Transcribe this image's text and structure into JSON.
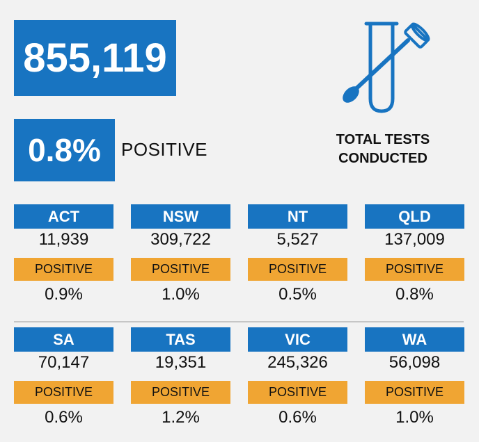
{
  "summary": {
    "total_tests": "855,119",
    "positive_pct": "0.8%",
    "positive_label": "POSITIVE",
    "caption_line1": "TOTAL TESTS",
    "caption_line2": "CONDUCTED",
    "icon": "test-tube-swab-icon"
  },
  "colors": {
    "blue": "#1874c1",
    "orange": "#f0a533"
  },
  "states": [
    {
      "name": "ACT",
      "count": "11,939",
      "positive_label": "POSITIVE",
      "positive_pct": "0.9%"
    },
    {
      "name": "NSW",
      "count": "309,722",
      "positive_label": "POSITIVE",
      "positive_pct": "1.0%"
    },
    {
      "name": "NT",
      "count": "5,527",
      "positive_label": "POSITIVE",
      "positive_pct": "0.5%"
    },
    {
      "name": "QLD",
      "count": "137,009",
      "positive_label": "POSITIVE",
      "positive_pct": "0.8%"
    },
    {
      "name": "SA",
      "count": "70,147",
      "positive_label": "POSITIVE",
      "positive_pct": "0.6%"
    },
    {
      "name": "TAS",
      "count": "19,351",
      "positive_label": "POSITIVE",
      "positive_pct": "1.2%"
    },
    {
      "name": "VIC",
      "count": "245,326",
      "positive_label": "POSITIVE",
      "positive_pct": "0.6%"
    },
    {
      "name": "WA",
      "count": "56,098",
      "positive_label": "POSITIVE",
      "positive_pct": "1.0%"
    }
  ]
}
